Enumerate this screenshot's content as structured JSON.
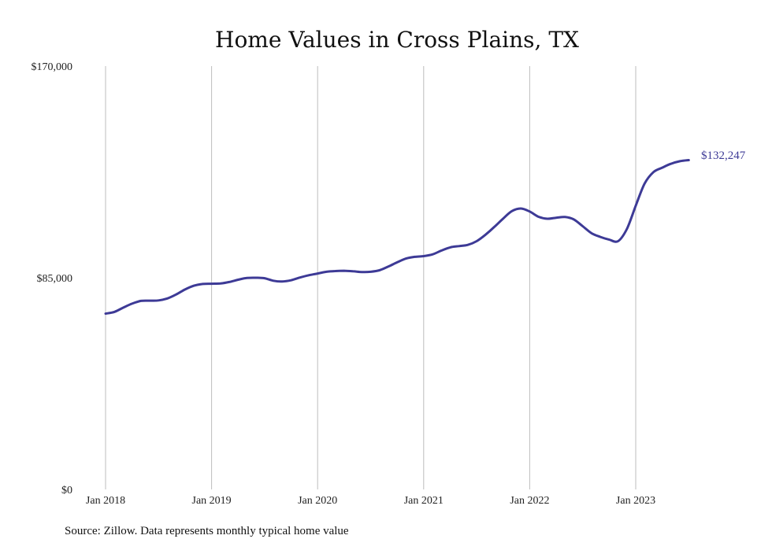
{
  "chart_data": {
    "type": "line",
    "title": "Home Values in Cross Plains, TX",
    "xlabel": "",
    "ylabel": "",
    "ylim": [
      0,
      170000
    ],
    "y_ticks": [
      {
        "value": 0,
        "label": "$0"
      },
      {
        "value": 85000,
        "label": "$85,000"
      },
      {
        "value": 170000,
        "label": "$170,000"
      }
    ],
    "x_ticks": [
      "Jan 2018",
      "Jan 2019",
      "Jan 2020",
      "Jan 2021",
      "Jan 2022",
      "Jan 2023"
    ],
    "grid": "vertical",
    "legend": "none",
    "end_label": "$132,247",
    "series": [
      {
        "color": "#3d3a96",
        "x": [
          "2018-01",
          "2018-02",
          "2018-03",
          "2018-04",
          "2018-05",
          "2018-06",
          "2018-07",
          "2018-08",
          "2018-09",
          "2018-10",
          "2018-11",
          "2018-12",
          "2019-01",
          "2019-02",
          "2019-03",
          "2019-04",
          "2019-05",
          "2019-06",
          "2019-07",
          "2019-08",
          "2019-09",
          "2019-10",
          "2019-11",
          "2019-12",
          "2020-01",
          "2020-02",
          "2020-03",
          "2020-04",
          "2020-05",
          "2020-06",
          "2020-07",
          "2020-08",
          "2020-09",
          "2020-10",
          "2020-11",
          "2020-12",
          "2021-01",
          "2021-02",
          "2021-03",
          "2021-04",
          "2021-05",
          "2021-06",
          "2021-07",
          "2021-08",
          "2021-09",
          "2021-10",
          "2021-11",
          "2021-12",
          "2022-01",
          "2022-02",
          "2022-03",
          "2022-04",
          "2022-05",
          "2022-06",
          "2022-07",
          "2022-08",
          "2022-09",
          "2022-10",
          "2022-11",
          "2022-12",
          "2023-01",
          "2023-02",
          "2023-03",
          "2023-04",
          "2023-05",
          "2023-06",
          "2023-07"
        ],
        "values": [
          70600,
          71300,
          73000,
          74600,
          75700,
          75800,
          75900,
          76700,
          78300,
          80300,
          81800,
          82500,
          82600,
          82700,
          83300,
          84200,
          84900,
          85000,
          84800,
          83800,
          83500,
          84000,
          85100,
          86000,
          86700,
          87400,
          87700,
          87800,
          87600,
          87300,
          87400,
          88000,
          89500,
          91200,
          92700,
          93400,
          93700,
          94400,
          95900,
          97200,
          97700,
          98200,
          99700,
          102300,
          105400,
          108800,
          111800,
          112800,
          111600,
          109500,
          108700,
          109100,
          109400,
          108400,
          105700,
          102900,
          101400,
          100300,
          99700,
          104600,
          113900,
          122800,
          127400,
          129200,
          130800,
          131800,
          132247
        ]
      }
    ]
  },
  "source": "Source: Zillow. Data represents monthly typical home value"
}
